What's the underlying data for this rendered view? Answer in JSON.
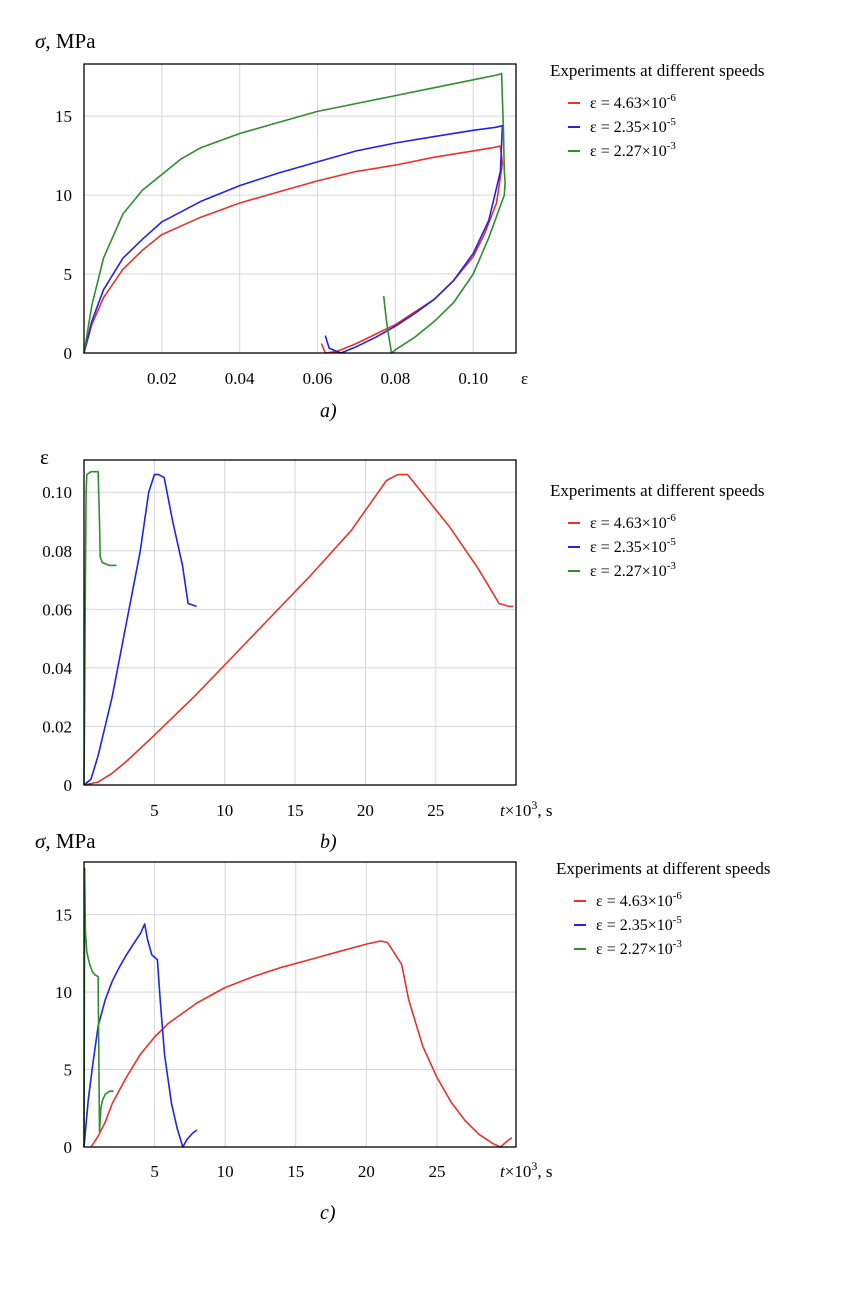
{
  "colors": {
    "red": "#e8322a",
    "blue": "#2323e6",
    "green": "#2e8f2e"
  },
  "legend": {
    "title": "Experiments at different speeds",
    "entries": [
      {
        "label": "ε = 4.63×10",
        "exp": "-6",
        "color": "#e8322a"
      },
      {
        "label": "ε = 2.35×10",
        "exp": "-5",
        "color": "#2323e6"
      },
      {
        "label": "ε = 2.27×10",
        "exp": "-3",
        "color": "#2e8f2e"
      }
    ]
  },
  "chart_data": [
    {
      "type": "line",
      "caption": "a)",
      "ylabel": "σ, MPa",
      "xlabel": "ε",
      "xlim": [
        0,
        0.111
      ],
      "ylim": [
        0,
        18.3
      ],
      "xticks": [
        "0.02",
        "0.04",
        "0.06",
        "0.08",
        "0.10"
      ],
      "xtick_values": [
        0.02,
        0.04,
        0.06,
        0.08,
        0.1
      ],
      "yticks": [
        "0",
        "5",
        "10",
        "15"
      ],
      "ytick_values": [
        0,
        5,
        10,
        15
      ],
      "grid": true,
      "legend_position": "right",
      "series": [
        {
          "name": "ε = 4.63×10-6",
          "color": "red",
          "x": [
            0,
            0.002,
            0.005,
            0.01,
            0.015,
            0.02,
            0.03,
            0.04,
            0.05,
            0.06,
            0.07,
            0.08,
            0.09,
            0.1,
            0.105,
            0.107,
            0.1075,
            0.106,
            0.103,
            0.1,
            0.095,
            0.09,
            0.085,
            0.08,
            0.075,
            0.07,
            0.065,
            0.062,
            0.061
          ],
          "y": [
            0,
            1.8,
            3.5,
            5.3,
            6.5,
            7.5,
            8.6,
            9.5,
            10.2,
            10.9,
            11.5,
            11.9,
            12.4,
            12.8,
            13.0,
            13.1,
            12.0,
            9.5,
            7.6,
            6.1,
            4.6,
            3.4,
            2.6,
            1.8,
            1.2,
            0.6,
            0.1,
            0.0,
            0.6
          ]
        },
        {
          "name": "ε = 2.35×10-5",
          "color": "blue",
          "x": [
            0,
            0.002,
            0.005,
            0.01,
            0.015,
            0.02,
            0.03,
            0.04,
            0.05,
            0.06,
            0.07,
            0.08,
            0.09,
            0.1,
            0.106,
            0.1075,
            0.107,
            0.104,
            0.1,
            0.095,
            0.09,
            0.085,
            0.08,
            0.075,
            0.07,
            0.066,
            0.063,
            0.062
          ],
          "y": [
            0,
            2.0,
            4.0,
            6.0,
            7.2,
            8.3,
            9.6,
            10.6,
            11.4,
            12.1,
            12.8,
            13.3,
            13.7,
            14.1,
            14.3,
            14.4,
            11.5,
            8.4,
            6.3,
            4.6,
            3.4,
            2.5,
            1.7,
            1.0,
            0.4,
            0.0,
            0.3,
            1.1
          ]
        },
        {
          "name": "ε = 2.27×10-3",
          "color": "green",
          "x": [
            0,
            0.002,
            0.005,
            0.01,
            0.015,
            0.02,
            0.025,
            0.03,
            0.04,
            0.05,
            0.06,
            0.07,
            0.08,
            0.09,
            0.1,
            0.106,
            0.1073,
            0.1078,
            0.108,
            0.1082,
            0.108,
            0.104,
            0.1,
            0.095,
            0.09,
            0.085,
            0.08,
            0.079,
            0.078,
            0.0775,
            0.077
          ],
          "y": [
            0,
            3.0,
            6.0,
            8.8,
            10.3,
            11.3,
            12.3,
            13.0,
            13.9,
            14.6,
            15.3,
            15.8,
            16.3,
            16.8,
            17.3,
            17.6,
            17.7,
            14.0,
            11.5,
            10.8,
            10.0,
            7.3,
            5.0,
            3.2,
            2.0,
            1.0,
            0.2,
            0.0,
            1.5,
            2.5,
            3.6
          ]
        }
      ]
    },
    {
      "type": "line",
      "caption": "b)",
      "ylabel": "ε",
      "xlabel": "t×10³, s",
      "xlim": [
        0,
        30.7
      ],
      "ylim": [
        0,
        0.111
      ],
      "xticks": [
        "5",
        "10",
        "15",
        "20",
        "25"
      ],
      "xtick_values": [
        5,
        10,
        15,
        20,
        25
      ],
      "yticks": [
        "0",
        "0.02",
        "0.04",
        "0.06",
        "0.08",
        "0.10"
      ],
      "ytick_values": [
        0,
        0.02,
        0.04,
        0.06,
        0.08,
        0.1
      ],
      "grid": true,
      "legend_position": "right",
      "series": [
        {
          "name": "ε = 4.63×10-6",
          "color": "red",
          "x": [
            0,
            1,
            2,
            3,
            5,
            8,
            10,
            13,
            16,
            19,
            21.5,
            22.3,
            23,
            24,
            26,
            28,
            29.5,
            30.2,
            30.5
          ],
          "y": [
            0,
            0.001,
            0.004,
            0.008,
            0.017,
            0.031,
            0.041,
            0.056,
            0.071,
            0.087,
            0.104,
            0.106,
            0.106,
            0.1,
            0.088,
            0.074,
            0.062,
            0.061,
            0.061
          ]
        },
        {
          "name": "ε = 2.35×10-5",
          "color": "blue",
          "x": [
            0,
            0.5,
            1,
            2,
            3,
            4,
            4.6,
            5.0,
            5.3,
            5.7,
            6.3,
            7.0,
            7.4,
            8.0
          ],
          "y": [
            0,
            0.002,
            0.01,
            0.03,
            0.055,
            0.08,
            0.1,
            0.106,
            0.106,
            0.105,
            0.09,
            0.075,
            0.062,
            0.061
          ]
        },
        {
          "name": "ε = 2.27×10-3",
          "color": "green",
          "x": [
            0,
            0.05,
            0.1,
            0.15,
            0.2,
            0.5,
            1.0,
            1.1,
            1.15,
            1.3,
            1.8,
            2.3
          ],
          "y": [
            0,
            0.03,
            0.07,
            0.1,
            0.106,
            0.107,
            0.107,
            0.09,
            0.078,
            0.076,
            0.075,
            0.075
          ]
        }
      ]
    },
    {
      "type": "line",
      "caption": "c)",
      "ylabel": "σ, MPa",
      "xlabel": "t×10³, s",
      "xlim": [
        0,
        30.6
      ],
      "ylim": [
        0,
        18.4
      ],
      "xticks": [
        "5",
        "10",
        "15",
        "20",
        "25"
      ],
      "xtick_values": [
        5,
        10,
        15,
        20,
        25
      ],
      "yticks": [
        "0",
        "5",
        "10",
        "15"
      ],
      "ytick_values": [
        0,
        5,
        10,
        15
      ],
      "grid": true,
      "legend_position": "right",
      "series": [
        {
          "name": "ε = 4.63×10-6",
          "color": "red",
          "x": [
            0.5,
            1,
            1.5,
            2,
            3,
            4,
            5,
            6,
            8,
            10,
            12,
            14,
            16,
            18,
            20,
            21,
            21.5,
            22,
            22.5,
            23,
            24,
            25,
            26,
            27,
            28,
            29,
            29.5,
            30,
            30.3
          ],
          "y": [
            0,
            0.7,
            1.6,
            2.8,
            4.5,
            6.0,
            7.1,
            8.0,
            9.3,
            10.3,
            11.0,
            11.6,
            12.1,
            12.6,
            13.1,
            13.3,
            13.2,
            12.5,
            11.8,
            9.5,
            6.5,
            4.5,
            2.9,
            1.7,
            0.8,
            0.2,
            0.0,
            0.4,
            0.6
          ]
        },
        {
          "name": "ε = 2.35×10-5",
          "color": "blue",
          "x": [
            0,
            0.3,
            0.6,
            1,
            1.5,
            2,
            2.5,
            3,
            3.5,
            4,
            4.3,
            4.5,
            4.8,
            5.2,
            5.4,
            5.7,
            6.2,
            6.6,
            7.0,
            7.3,
            7.7,
            8.0
          ],
          "y": [
            0,
            3.0,
            5.2,
            7.8,
            9.5,
            10.7,
            11.6,
            12.4,
            13.1,
            13.8,
            14.4,
            13.4,
            12.4,
            12.1,
            9.5,
            6.0,
            2.8,
            1.2,
            0.0,
            0.5,
            0.9,
            1.1
          ]
        },
        {
          "name": "ε = 2.27×10-3",
          "color": "green",
          "x": [
            0,
            0.05,
            0.1,
            0.2,
            0.4,
            0.6,
            0.8,
            1.0,
            1.1,
            1.2,
            1.3,
            1.5,
            1.8,
            2.1
          ],
          "y": [
            0,
            18.0,
            14.0,
            12.6,
            11.8,
            11.3,
            11.1,
            11.0,
            1.0,
            2.5,
            3.0,
            3.4,
            3.6,
            3.6
          ]
        }
      ]
    }
  ]
}
